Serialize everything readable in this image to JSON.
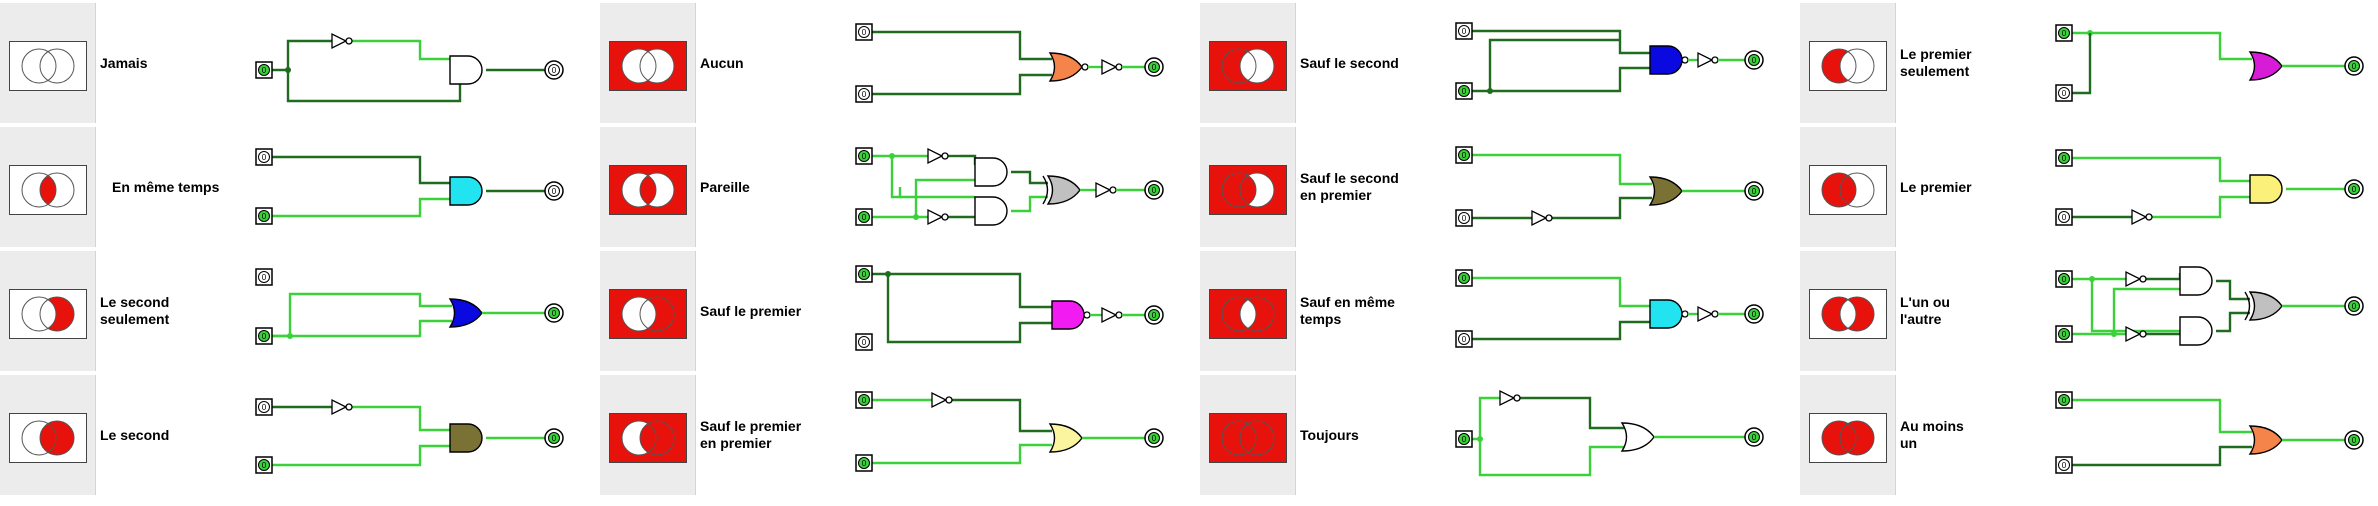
{
  "columns": [
    {
      "rows": [
        {
          "label": "Jamais",
          "box": "white",
          "fill": "none",
          "gate": "and",
          "color": "#ffffff",
          "inputs": "A"
        },
        {
          "label": "En même temps",
          "box": "white",
          "fill": "inter",
          "gate": "and",
          "color": "#22e4f0",
          "inputs": "B"
        },
        {
          "label": "Le second\nseulement",
          "box": "white",
          "fill": "bonly",
          "gate": "or",
          "color": "#0a0ae0",
          "inputs": "C"
        },
        {
          "label": "Le second",
          "box": "white",
          "fill": "b",
          "gate": "and",
          "color": "#7a7235",
          "inputs": "D"
        }
      ]
    },
    {
      "rows": [
        {
          "label": "Aucun",
          "box": "red",
          "fill": "none",
          "gate": "nor",
          "color": "#f5844a",
          "inputs": "E"
        },
        {
          "label": "Pareille",
          "box": "red",
          "fill": "xnor",
          "gate": "xnor",
          "color": "#c0c0c0",
          "inputs": "F"
        },
        {
          "label": "Sauf le premier",
          "box": "red",
          "fill": "nota",
          "gate": "nand",
          "color": "#f21cf2",
          "inputs": "G"
        },
        {
          "label": "Sauf le premier\nen premier",
          "box": "red",
          "fill": "aimpb",
          "gate": "or",
          "color": "#fbf5a0",
          "inputs": "H"
        }
      ]
    },
    {
      "rows": [
        {
          "label": "Sauf le second",
          "box": "red",
          "fill": "notb",
          "gate": "nand",
          "color": "#0a0ae0",
          "inputs": "I"
        },
        {
          "label": "Sauf le second\nen premier",
          "box": "red",
          "fill": "bimpa",
          "gate": "or",
          "color": "#7a7235",
          "inputs": "J"
        },
        {
          "label": "Sauf en même\ntemps",
          "box": "red",
          "fill": "nand",
          "gate": "nand",
          "color": "#22e4f0",
          "inputs": "K"
        },
        {
          "label": "Toujours",
          "box": "red",
          "fill": "all",
          "gate": "or",
          "color": "#ffffff",
          "inputs": "L"
        }
      ]
    },
    {
      "rows": [
        {
          "label": "Le premier\nseulement",
          "box": "white",
          "fill": "aonly",
          "gate": "or",
          "color": "#d61cd6",
          "inputs": "M"
        },
        {
          "label": "Le premier",
          "box": "white",
          "fill": "a",
          "gate": "and",
          "color": "#fbf079",
          "inputs": "N"
        },
        {
          "label": "L'un ou\nl'autre",
          "box": "white",
          "fill": "xor",
          "gate": "xor",
          "color": "#c0c0c0",
          "inputs": "O"
        },
        {
          "label": "Au moins\nun",
          "box": "white",
          "fill": "or",
          "gate": "or",
          "color": "#f5844a",
          "inputs": "P"
        }
      ]
    }
  ],
  "pin_text": "0",
  "colors": {
    "red": "#e8120c",
    "wire_off": "#1f6b1f",
    "wire_on": "#3ad13a",
    "pin_on": "#3ad13a",
    "pin_off": "#ffffff"
  }
}
